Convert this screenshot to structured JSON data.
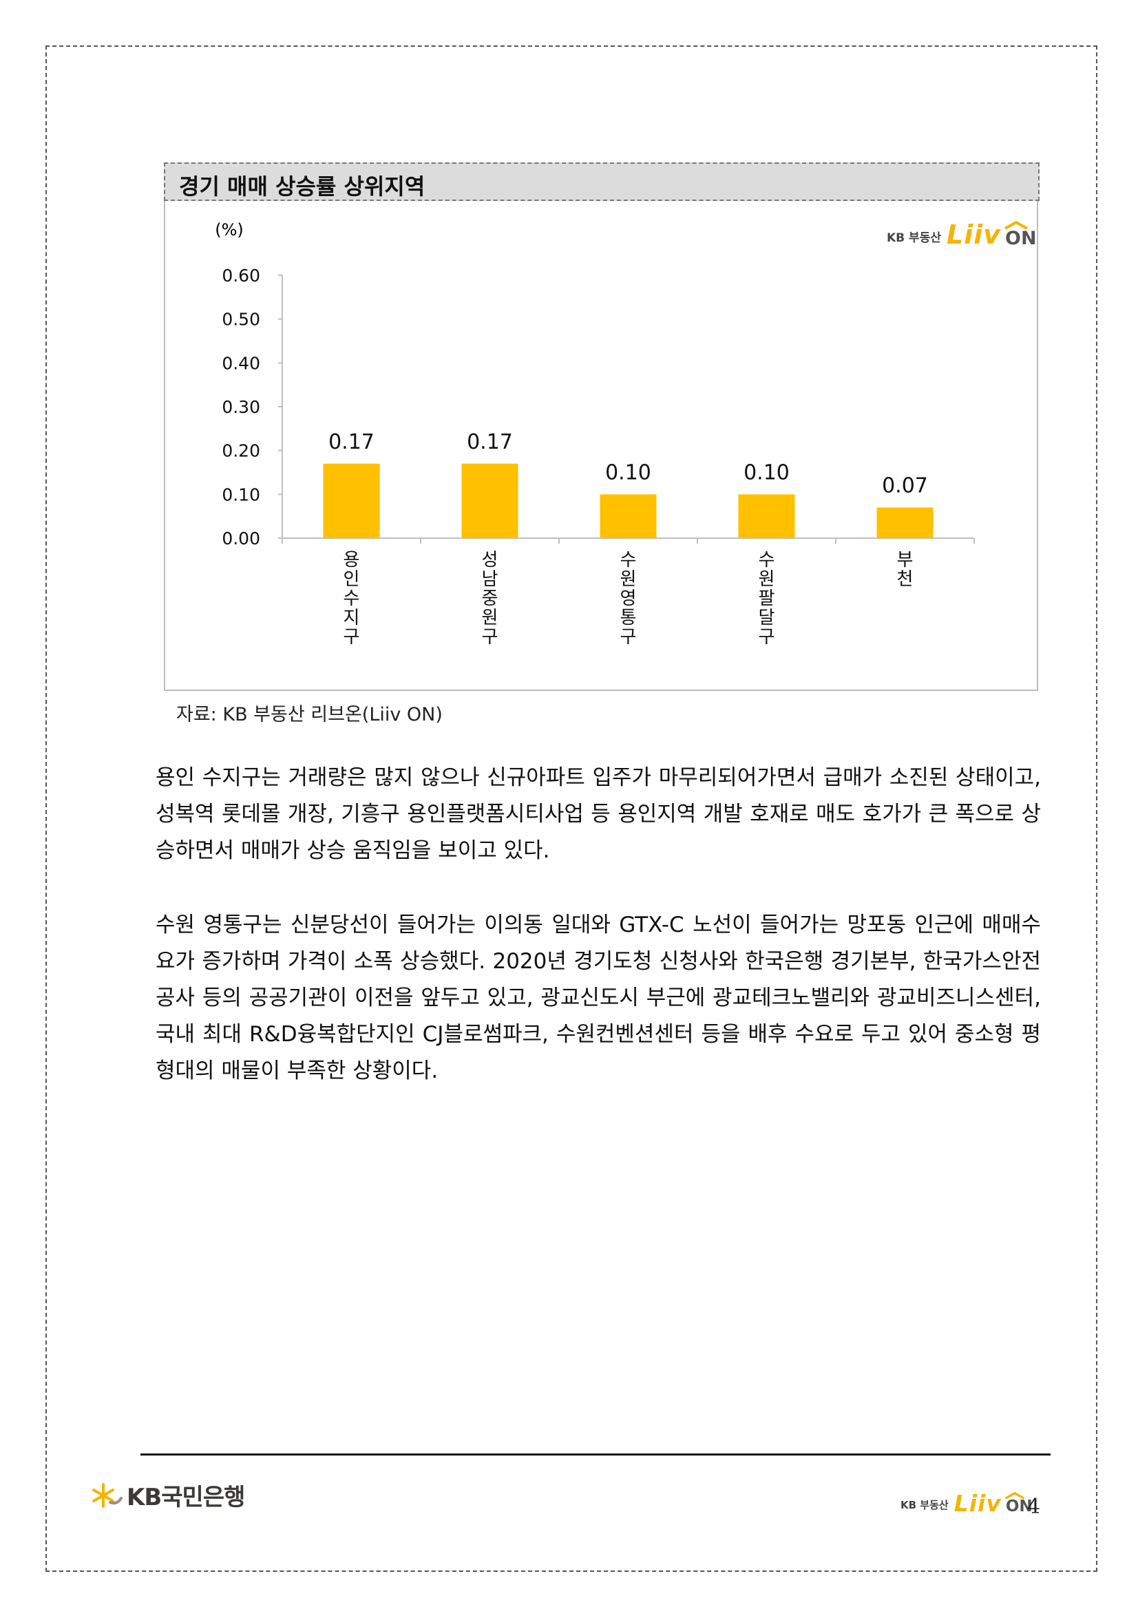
{
  "chart": {
    "title": "경기 매매 상승률 상위지역",
    "logo_kb": "KB 부동산",
    "logo_liiv": "Liiv",
    "logo_on": "ON"
  },
  "chart_data": {
    "type": "bar",
    "title": "경기 매매 상승률 상위지역",
    "ylabel": "(%)",
    "xlabel": "",
    "categories": [
      "용인수지구",
      "성남중원구",
      "수원영통구",
      "수원팔달구",
      "부천"
    ],
    "values": [
      0.17,
      0.17,
      0.1,
      0.1,
      0.07
    ],
    "data_labels": [
      "0.17",
      "0.17",
      "0.10",
      "0.10",
      "0.07"
    ],
    "ylim": [
      0,
      0.6
    ],
    "yticks": [
      "0.00",
      "0.10",
      "0.20",
      "0.30",
      "0.40",
      "0.50",
      "0.60"
    ],
    "bar_color": "#ffc000",
    "grid": false,
    "legend": "none"
  },
  "source": "자료: KB 부동산  리브온(Liiv ON)",
  "paragraphs": [
    "용인 수지구는 거래량은 많지 않으나 신규아파트 입주가 마무리되어가면서 급매가 소진된 상태이고, 성복역 롯데몰 개장, 기흥구 용인플랫폼시티사업 등 용인지역 개발 호재로 매도 호가가 큰 폭으로 상승하면서 매매가 상승 움직임을 보이고 있다.",
    "수원 영통구는 신분당선이 들어가는 이의동 일대와 GTX-C 노선이 들어가는 망포동 인근에 매매수요가 증가하며 가격이 소폭 상승했다. 2020년 경기도청 신청사와 한국은행 경기본부, 한국가스안전공사 등의 공공기관이 이전을 앞두고 있고, 광교신도시 부근에 광교테크노밸리와 광교비즈니스센터, 국내 최대 R&D융복합단지인 CJ블로썸파크, 수원컨벤션센터 등을 배후 수요로 두고 있어 중소형 평형대의 매물이 부족한 상황이다."
  ],
  "footer": {
    "bank_name": "KB국민은행",
    "logo_kb": "KB 부동산",
    "logo_liiv": "Liiv",
    "logo_on": "ON",
    "page_number": "4"
  },
  "colors": {
    "accent": "#ffc000",
    "border": "#555555"
  }
}
